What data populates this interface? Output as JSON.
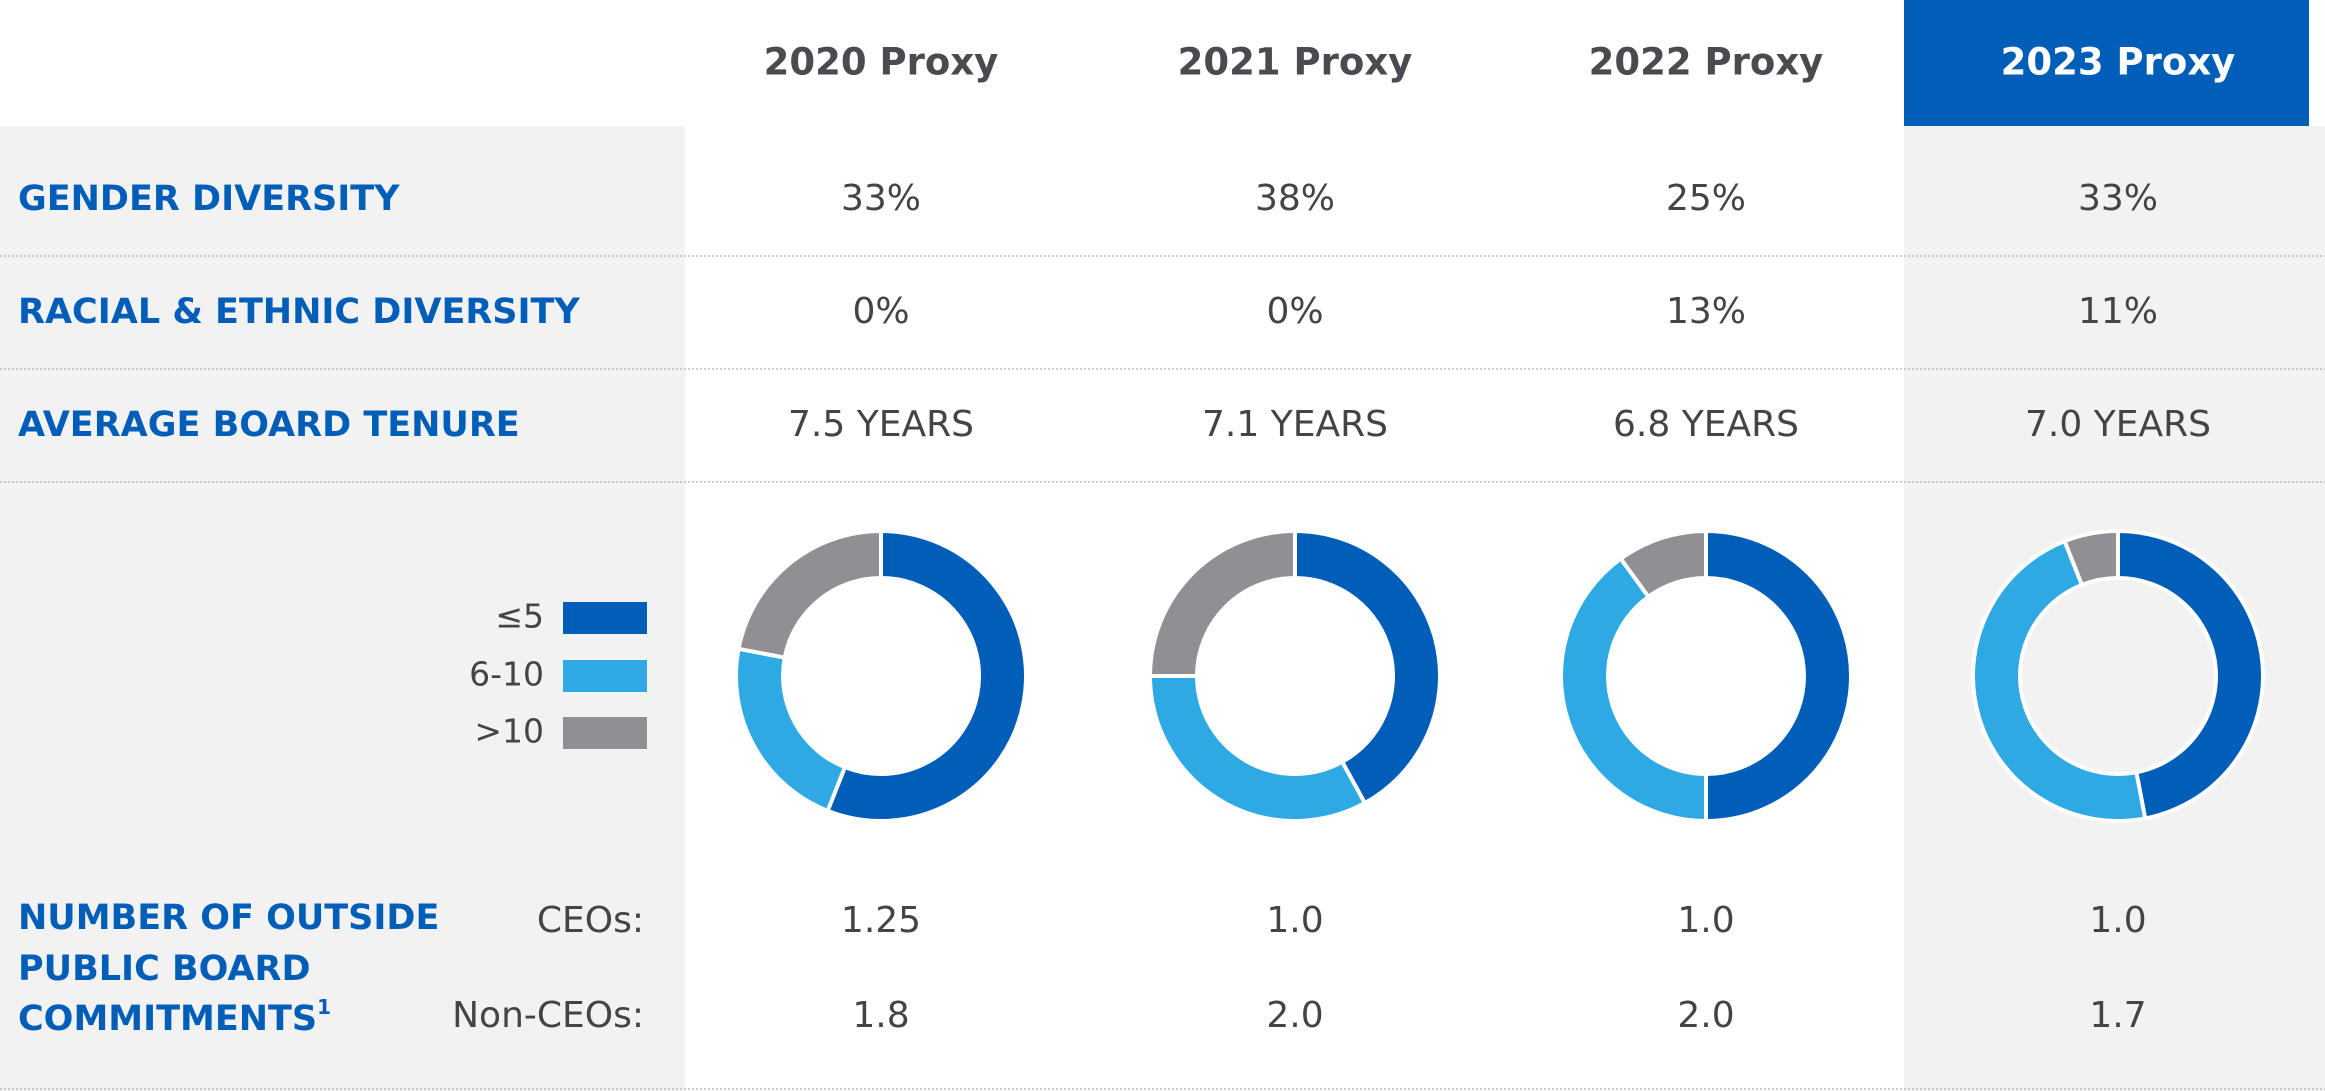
{
  "header": {
    "columns": [
      "2020 Proxy",
      "2021 Proxy",
      "2022 Proxy",
      "2023 Proxy"
    ]
  },
  "rows": [
    {
      "label": "GENDER DIVERSITY",
      "values": [
        "33%",
        "38%",
        "25%",
        "33%"
      ]
    },
    {
      "label": "RACIAL & ETHNIC DIVERSITY",
      "values": [
        "0%",
        "0%",
        "13%",
        "11%"
      ]
    },
    {
      "label": "AVERAGE BOARD TENURE",
      "values": [
        "7.5 YEARS",
        "7.1 YEARS",
        "6.8 YEARS",
        "7.0 YEARS"
      ]
    }
  ],
  "tenure": {
    "legend": [
      {
        "label": "≤5",
        "color": "#005eb8"
      },
      {
        "label": "6-10",
        "color": "#2ea9e3"
      },
      {
        "label": ">10",
        "color": "#918f94"
      }
    ],
    "donuts": [
      [
        56,
        22,
        22
      ],
      [
        42,
        33,
        25
      ],
      [
        50,
        40,
        10
      ],
      [
        47,
        47,
        6
      ]
    ]
  },
  "commitments": {
    "lines": [
      "NUMBER OF OUTSIDE",
      "PUBLIC BOARD",
      "COMMITMENTS"
    ],
    "footnote": "1",
    "rows": [
      {
        "label": "CEOs:",
        "values": [
          "1.25",
          "1.0",
          "1.0",
          "1.0"
        ]
      },
      {
        "label": "Non-CEOs:",
        "values": [
          "1.8",
          "2.0",
          "2.0",
          "1.7"
        ]
      }
    ]
  }
}
